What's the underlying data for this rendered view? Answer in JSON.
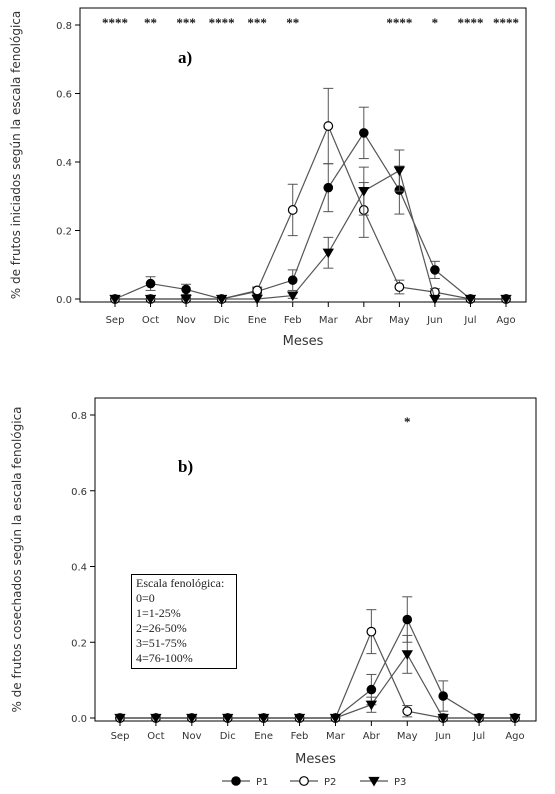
{
  "chart_data": [
    {
      "type": "line",
      "panel_label": "a)",
      "ylabel": "% de frutos iniciados según la escala fenológica",
      "xlabel": "Meses",
      "categories": [
        "Sep",
        "Oct",
        "Nov",
        "Dic",
        "Ene",
        "Feb",
        "Mar",
        "Abr",
        "May",
        "Jun",
        "Jul",
        "Ago"
      ],
      "ylim": [
        0,
        0.8
      ],
      "yticks": [
        "0.0",
        "0.2",
        "0.4",
        "0.6",
        "0.8"
      ],
      "significance": [
        "****",
        "**",
        "***",
        "****",
        "***",
        "**",
        "",
        "",
        "****",
        "*",
        "****",
        "****"
      ],
      "series": [
        {
          "name": "P1",
          "marker": "filled-circle",
          "values": [
            0,
            0.045,
            0.028,
            0,
            0.022,
            0.055,
            0.325,
            0.485,
            0.318,
            0.085,
            0,
            0
          ],
          "errors": [
            0,
            0.02,
            0.015,
            0,
            0.01,
            0.03,
            0.07,
            0.075,
            0.07,
            0.025,
            0,
            0
          ]
        },
        {
          "name": "P2",
          "marker": "open-circle",
          "values": [
            0,
            0,
            0,
            0,
            0.025,
            0.26,
            0.505,
            0.26,
            0.035,
            0.02,
            0,
            0
          ],
          "errors": [
            0,
            0,
            0,
            0,
            0.01,
            0.075,
            0.11,
            0.08,
            0.02,
            0.01,
            0,
            0
          ]
        },
        {
          "name": "P3",
          "marker": "filled-triangle-down",
          "values": [
            0,
            0,
            0,
            0,
            0,
            0.01,
            0.135,
            0.315,
            0.375,
            0,
            0,
            0
          ],
          "errors": [
            0,
            0,
            0,
            0,
            0,
            0.008,
            0.045,
            0.07,
            0.06,
            0,
            0,
            0
          ]
        }
      ]
    },
    {
      "type": "line",
      "panel_label": "b)",
      "ylabel": "% de frutos cosechados según la escala fenológica",
      "xlabel": "Meses",
      "categories": [
        "Sep",
        "Oct",
        "Nov",
        "Dic",
        "Ene",
        "Feb",
        "Mar",
        "Abr",
        "May",
        "Jun",
        "Jul",
        "Ago"
      ],
      "ylim": [
        0,
        0.8
      ],
      "yticks": [
        "0.0",
        "0.2",
        "0.4",
        "0.6",
        "0.8"
      ],
      "significance": [
        "",
        "",
        "",
        "",
        "",
        "",
        "",
        "",
        "*",
        "",
        "",
        ""
      ],
      "series": [
        {
          "name": "P1",
          "marker": "filled-circle",
          "values": [
            0,
            0,
            0,
            0,
            0,
            0,
            0,
            0.075,
            0.26,
            0.058,
            0,
            0
          ],
          "errors": [
            0,
            0,
            0,
            0,
            0,
            0,
            0,
            0.04,
            0.06,
            0.04,
            0,
            0
          ]
        },
        {
          "name": "P2",
          "marker": "open-circle",
          "values": [
            0,
            0,
            0,
            0,
            0,
            0,
            0,
            0.228,
            0.018,
            0,
            0,
            0
          ],
          "errors": [
            0,
            0,
            0,
            0,
            0,
            0,
            0,
            0.058,
            0.015,
            0,
            0,
            0
          ]
        },
        {
          "name": "P3",
          "marker": "filled-triangle-down",
          "values": [
            0,
            0,
            0,
            0,
            0,
            0,
            0,
            0.035,
            0.168,
            0,
            0,
            0
          ],
          "errors": [
            0,
            0,
            0,
            0,
            0,
            0,
            0,
            0.02,
            0.05,
            0,
            0,
            0
          ]
        }
      ],
      "scale_box": {
        "title": "Escala fenológica:",
        "items": [
          "0=0",
          "1=1-25%",
          "2=26-50%",
          "3=51-75%",
          "4=76-100%"
        ]
      }
    }
  ],
  "legend": [
    {
      "name": "P1",
      "marker": "filled-circle"
    },
    {
      "name": "P2",
      "marker": "open-circle"
    },
    {
      "name": "P3",
      "marker": "filled-triangle-down"
    }
  ]
}
